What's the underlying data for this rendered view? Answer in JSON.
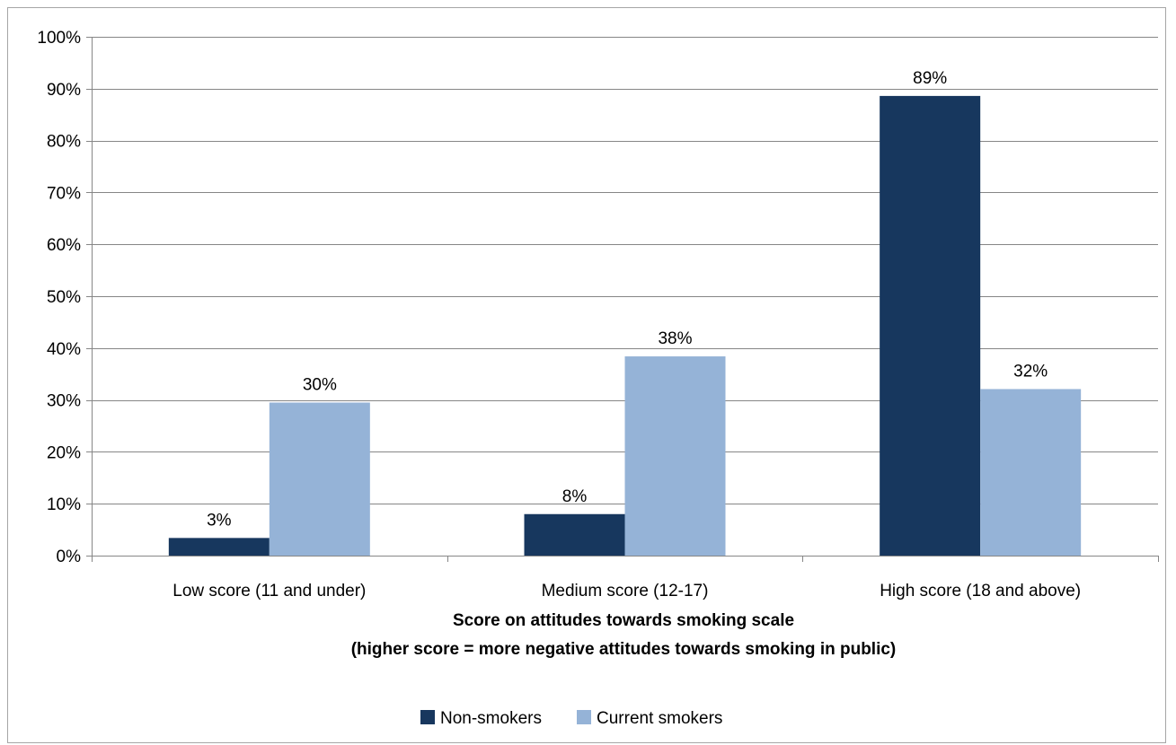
{
  "chart_data": {
    "type": "bar",
    "categories": [
      "Low score (11 and under)",
      "Medium score (12-17)",
      "High score (18 and above)"
    ],
    "series": [
      {
        "name": "Non-smokers",
        "values": [
          3.4,
          8,
          88.6
        ],
        "labels": [
          "3%",
          "8%",
          "89%"
        ],
        "color": "#17375e"
      },
      {
        "name": "Current smokers",
        "values": [
          29.5,
          38.4,
          32.1
        ],
        "labels": [
          "30%",
          "38%",
          "32%"
        ],
        "color": "#95b3d7"
      }
    ],
    "xlabel": [
      "Score on attitudes towards smoking scale",
      "(higher score = more negative attitudes towards smoking in public)"
    ],
    "ylabel": "",
    "ylim": [
      0,
      100
    ],
    "yticks": [
      0,
      10,
      20,
      30,
      40,
      50,
      60,
      70,
      80,
      90,
      100
    ],
    "ytick_labels": [
      "0%",
      "10%",
      "20%",
      "30%",
      "40%",
      "50%",
      "60%",
      "70%",
      "80%",
      "90%",
      "100%"
    ],
    "grid": true,
    "legend_position": "bottom"
  }
}
